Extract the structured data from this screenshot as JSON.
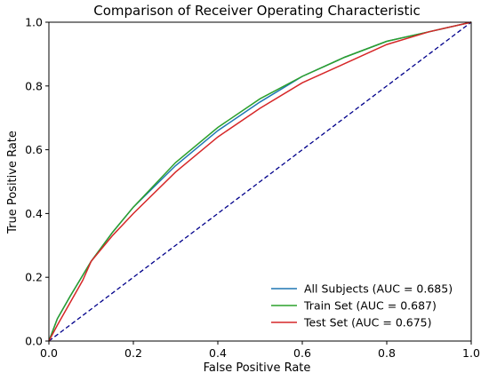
{
  "chart_data": {
    "type": "line",
    "title": "Comparison of Receiver Operating Characteristic",
    "xlabel": "False Positive Rate",
    "ylabel": "True Positive Rate",
    "xlim": [
      0.0,
      1.0
    ],
    "ylim": [
      0.0,
      1.0
    ],
    "xticks": [
      "0.0",
      "0.2",
      "0.4",
      "0.6",
      "0.8",
      "1.0"
    ],
    "yticks": [
      "0.0",
      "0.2",
      "0.4",
      "0.6",
      "0.8",
      "1.0"
    ],
    "grid": false,
    "legend_position": "lower-right",
    "series": [
      {
        "name": "All Subjects (AUC = 0.685)",
        "color": "#1f77b4",
        "x": [
          0.0,
          0.02,
          0.05,
          0.1,
          0.15,
          0.2,
          0.3,
          0.4,
          0.5,
          0.6,
          0.7,
          0.8,
          0.9,
          1.0
        ],
        "y": [
          0.0,
          0.07,
          0.14,
          0.25,
          0.34,
          0.42,
          0.55,
          0.66,
          0.75,
          0.83,
          0.89,
          0.94,
          0.97,
          1.0
        ]
      },
      {
        "name": "Train Set (AUC = 0.687)",
        "color": "#2ca02c",
        "x": [
          0.0,
          0.02,
          0.05,
          0.1,
          0.15,
          0.2,
          0.3,
          0.4,
          0.5,
          0.6,
          0.7,
          0.8,
          0.9,
          1.0
        ],
        "y": [
          0.0,
          0.07,
          0.14,
          0.25,
          0.34,
          0.42,
          0.56,
          0.67,
          0.76,
          0.83,
          0.89,
          0.94,
          0.97,
          1.0
        ]
      },
      {
        "name": "Test Set (AUC = 0.675)",
        "color": "#d62728",
        "x": [
          0.0,
          0.02,
          0.05,
          0.08,
          0.1,
          0.15,
          0.2,
          0.3,
          0.4,
          0.5,
          0.6,
          0.7,
          0.8,
          0.9,
          1.0
        ],
        "y": [
          0.0,
          0.05,
          0.12,
          0.19,
          0.25,
          0.33,
          0.4,
          0.53,
          0.64,
          0.73,
          0.81,
          0.87,
          0.93,
          0.97,
          1.0
        ]
      },
      {
        "name": "",
        "color": "#00008b",
        "dashed": true,
        "x": [
          0.0,
          1.0
        ],
        "y": [
          0.0,
          1.0
        ]
      }
    ]
  }
}
